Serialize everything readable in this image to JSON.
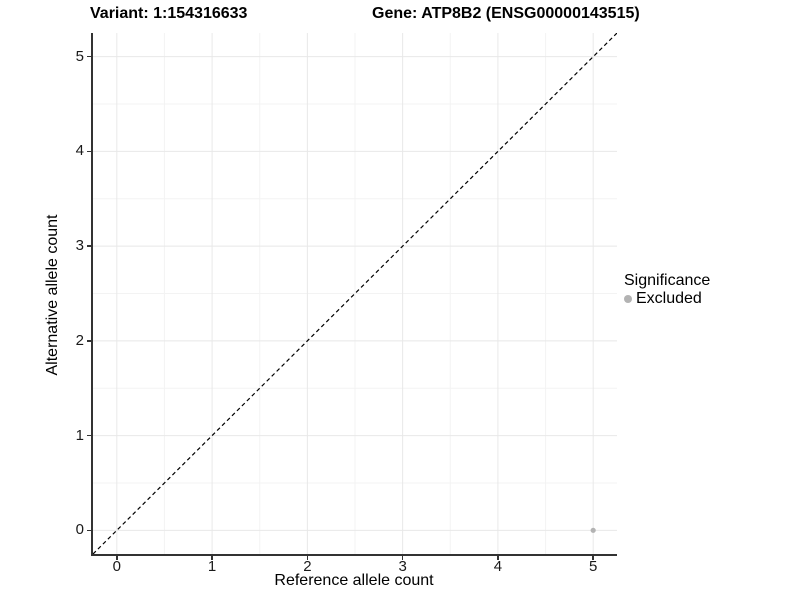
{
  "title": {
    "variant": "Variant: 1:154316633",
    "gene": "Gene: ATP8B2 (ENSG00000143515)"
  },
  "chart_data": {
    "type": "scatter",
    "title": "Variant: 1:154316633   Gene: ATP8B2 (ENSG00000143515)",
    "xlabel": "Reference allele count",
    "ylabel": "Alternative allele count",
    "xlim": [
      -0.25,
      5.25
    ],
    "ylim": [
      -0.25,
      5.25
    ],
    "xticks": [
      0,
      1,
      2,
      3,
      4,
      5
    ],
    "yticks": [
      0,
      1,
      2,
      3,
      4,
      5
    ],
    "xminor": [
      0.5,
      1.5,
      2.5,
      3.5,
      4.5
    ],
    "yminor": [
      0.5,
      1.5,
      2.5,
      3.5,
      4.5
    ],
    "grid": {
      "on": true,
      "major_color": "#e8e8e8",
      "minor_color": "#f3f3f3"
    },
    "reference_line": {
      "type": "identity",
      "style": "dashed",
      "color": "#000000",
      "from": [
        -0.25,
        -0.25
      ],
      "to": [
        5.25,
        5.25
      ]
    },
    "series": [
      {
        "name": "Excluded",
        "color": "#b3b3b3",
        "point_radius": 2.6,
        "points": [
          [
            5,
            0
          ]
        ]
      }
    ],
    "legend": {
      "title": "Significance",
      "position": "right",
      "entries": [
        {
          "label": "Excluded",
          "color": "#b3b3b3"
        }
      ]
    }
  },
  "colors": {
    "axis_line": "#333333",
    "tick_mark": "#333333",
    "text": "#000000",
    "background": "#ffffff"
  }
}
